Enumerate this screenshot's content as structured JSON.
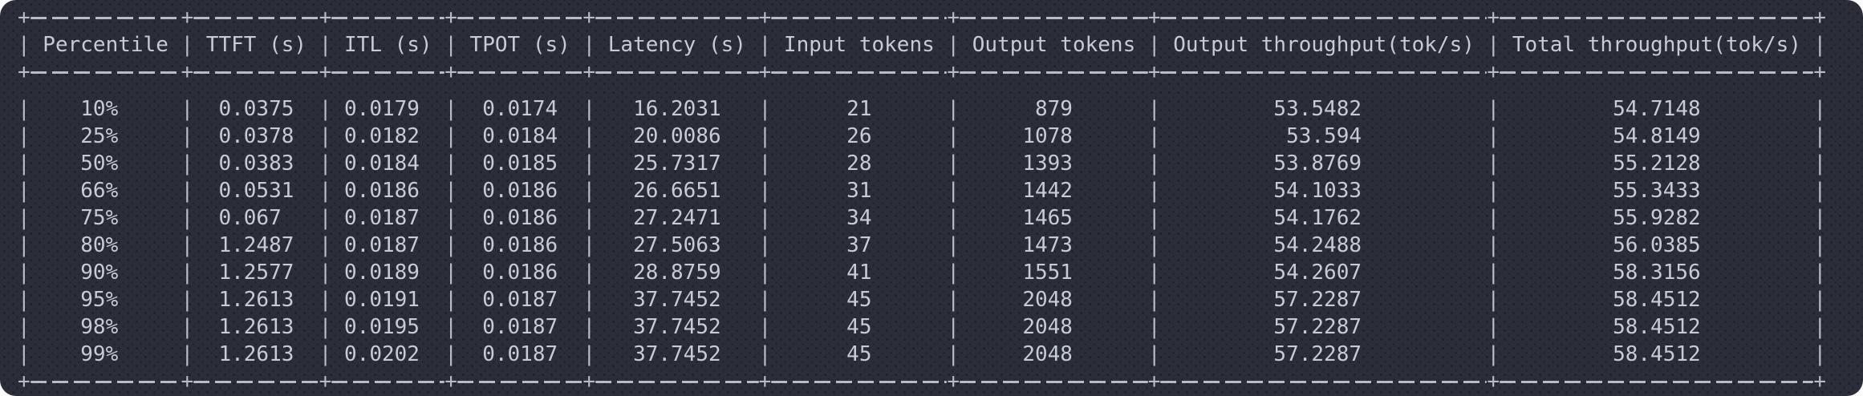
{
  "terminal": {
    "background": "#2b2d38",
    "text_color": "#c6ccd6",
    "border_color": "#b6bdc8"
  },
  "table": {
    "name": "percentile-results",
    "headers": [
      "Percentile",
      "TTFT (s)",
      "ITL (s)",
      "TPOT (s)",
      "Latency (s)",
      "Input tokens",
      "Output tokens",
      "Output throughput(tok/s)",
      "Total throughput(tok/s)"
    ],
    "rows": [
      [
        "10%",
        "0.0375",
        "0.0179",
        "0.0174",
        "16.2031",
        "21",
        "879",
        "53.5482",
        "54.7148"
      ],
      [
        "25%",
        "0.0378",
        "0.0182",
        "0.0184",
        "20.0086",
        "26",
        "1078",
        "53.594",
        "54.8149"
      ],
      [
        "50%",
        "0.0383",
        "0.0184",
        "0.0185",
        "25.7317",
        "28",
        "1393",
        "53.8769",
        "55.2128"
      ],
      [
        "66%",
        "0.0531",
        "0.0186",
        "0.0186",
        "26.6651",
        "31",
        "1442",
        "54.1033",
        "55.3433"
      ],
      [
        "75%",
        "0.067",
        "0.0187",
        "0.0186",
        "27.2471",
        "34",
        "1465",
        "54.1762",
        "55.9282"
      ],
      [
        "80%",
        "1.2487",
        "0.0187",
        "0.0186",
        "27.5063",
        "37",
        "1473",
        "54.2488",
        "56.0385"
      ],
      [
        "90%",
        "1.2577",
        "0.0189",
        "0.0186",
        "28.8759",
        "41",
        "1551",
        "54.2607",
        "58.3156"
      ],
      [
        "95%",
        "1.2613",
        "0.0191",
        "0.0187",
        "37.7452",
        "45",
        "2048",
        "57.2287",
        "58.4512"
      ],
      [
        "98%",
        "1.2613",
        "0.0195",
        "0.0187",
        "37.7452",
        "45",
        "2048",
        "57.2287",
        "58.4512"
      ],
      [
        "99%",
        "1.2613",
        "0.0202",
        "0.0187",
        "37.7452",
        "45",
        "2048",
        "57.2287",
        "58.4512"
      ]
    ]
  }
}
